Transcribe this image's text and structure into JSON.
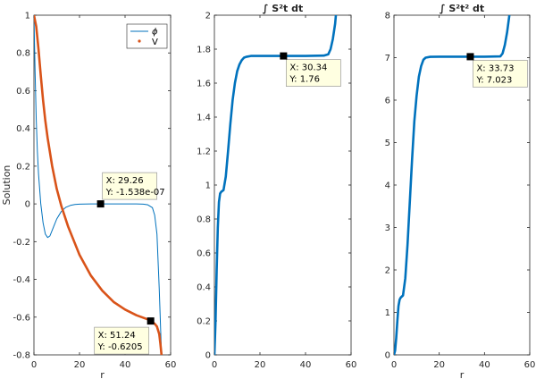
{
  "chart_data": [
    {
      "type": "line",
      "title": "",
      "xlabel": "r",
      "ylabel": "Solution",
      "xlim": [
        0,
        60
      ],
      "ylim": [
        -0.8,
        1
      ],
      "xticks": [
        0,
        20,
        40,
        60
      ],
      "yticks": [
        -0.8,
        -0.6,
        -0.4,
        -0.2,
        0,
        0.2,
        0.4,
        0.6,
        0.8,
        1
      ],
      "xtick_labels": [
        "0",
        "20",
        "40",
        "60"
      ],
      "ytick_labels": [
        "-0.8",
        "-0.6",
        "-0.4",
        "-0.2",
        "0",
        "0.2",
        "0.4",
        "0.6",
        "0.8",
        "1"
      ],
      "legend": {
        "placement": "top-right",
        "entries": [
          "ϕ",
          "V"
        ]
      },
      "series": [
        {
          "name": "ϕ",
          "color": "#0072BD",
          "width": "thin",
          "x": [
            0,
            0.5,
            1,
            1.5,
            2,
            3,
            4,
            5,
            6,
            7,
            8,
            9,
            10,
            12,
            14,
            16,
            18,
            20,
            25,
            30,
            35,
            40,
            45,
            48,
            50,
            52,
            53,
            54,
            55,
            56
          ],
          "y": [
            1.0,
            0.7,
            0.45,
            0.28,
            0.16,
            0.0,
            -0.1,
            -0.16,
            -0.178,
            -0.17,
            -0.14,
            -0.11,
            -0.08,
            -0.04,
            -0.018,
            -0.008,
            -0.003,
            -0.001,
            0.0,
            0.0,
            0.0,
            0.0,
            0.0,
            -0.001,
            -0.005,
            -0.02,
            -0.06,
            -0.16,
            -0.45,
            -0.8
          ]
        },
        {
          "name": "V",
          "color": "#D95319",
          "width": "thick",
          "x": [
            0,
            1,
            2,
            3,
            4,
            5,
            6,
            8,
            10,
            12,
            15,
            18,
            20,
            25,
            30,
            35,
            40,
            45,
            50,
            51.24,
            53,
            54,
            55,
            55.5,
            56
          ],
          "y": [
            1.0,
            0.94,
            0.82,
            0.68,
            0.55,
            0.44,
            0.35,
            0.2,
            0.08,
            -0.01,
            -0.12,
            -0.21,
            -0.27,
            -0.38,
            -0.46,
            -0.52,
            -0.56,
            -0.59,
            -0.612,
            -0.6205,
            -0.635,
            -0.65,
            -0.69,
            -0.74,
            -0.8
          ]
        }
      ],
      "datatips": [
        {
          "x": 29.26,
          "y": -1.538e-07,
          "lines": [
            "X: 29.26",
            "Y: -1.538e-07"
          ]
        },
        {
          "x": 51.24,
          "y": -0.6205,
          "lines": [
            "X: 51.24",
            "Y: -0.6205"
          ]
        }
      ]
    },
    {
      "type": "line",
      "title": "∫ S²t dt",
      "xlabel": "",
      "ylabel": "",
      "xlim": [
        0,
        60
      ],
      "ylim": [
        0,
        2
      ],
      "xticks": [
        0,
        20,
        40,
        60
      ],
      "yticks": [
        0,
        0.2,
        0.4,
        0.6,
        0.8,
        1,
        1.2,
        1.4,
        1.6,
        1.8,
        2
      ],
      "xtick_labels": [
        "0",
        "20",
        "40",
        "60"
      ],
      "ytick_labels": [
        "0",
        "0.2",
        "0.4",
        "0.6",
        "0.8",
        "1",
        "1.2",
        "1.4",
        "1.6",
        "1.8",
        "2"
      ],
      "series": [
        {
          "color": "#0072BD",
          "width": "thick",
          "x": [
            0,
            0.5,
            1,
            1.5,
            2,
            2.5,
            3,
            4,
            5,
            6,
            7,
            8,
            9,
            10,
            11,
            12,
            13,
            14,
            16,
            20,
            30,
            40,
            48,
            50,
            51,
            52,
            53,
            54
          ],
          "y": [
            0,
            0.2,
            0.5,
            0.75,
            0.9,
            0.95,
            0.96,
            0.97,
            1.05,
            1.2,
            1.36,
            1.5,
            1.6,
            1.67,
            1.71,
            1.735,
            1.75,
            1.755,
            1.76,
            1.76,
            1.76,
            1.76,
            1.762,
            1.77,
            1.8,
            1.86,
            1.95,
            2.1
          ]
        }
      ],
      "datatips": [
        {
          "x": 30.34,
          "y": 1.76,
          "lines": [
            "X: 30.34",
            "Y: 1.76"
          ]
        }
      ]
    },
    {
      "type": "line",
      "title": "∫ S²t² dt",
      "xlabel": "r",
      "ylabel": "",
      "xlim": [
        0,
        60
      ],
      "ylim": [
        0,
        8
      ],
      "xticks": [
        0,
        20,
        40,
        60
      ],
      "yticks": [
        0,
        1,
        2,
        3,
        4,
        5,
        6,
        7,
        8
      ],
      "xtick_labels": [
        "0",
        "20",
        "40",
        "60"
      ],
      "ytick_labels": [
        "0",
        "1",
        "2",
        "3",
        "4",
        "5",
        "6",
        "7",
        "8"
      ],
      "series": [
        {
          "color": "#0072BD",
          "width": "thick",
          "x": [
            0,
            0.5,
            1,
            1.5,
            2,
            2.5,
            3,
            4,
            5,
            6,
            7,
            8,
            9,
            10,
            11,
            12,
            13,
            14,
            16,
            20,
            30,
            40,
            47,
            48,
            49,
            50,
            51,
            52
          ],
          "y": [
            0,
            0.1,
            0.4,
            0.8,
            1.15,
            1.3,
            1.35,
            1.4,
            1.8,
            2.6,
            3.6,
            4.6,
            5.5,
            6.1,
            6.55,
            6.8,
            6.95,
            7.0,
            7.02,
            7.023,
            7.023,
            7.023,
            7.03,
            7.1,
            7.3,
            7.6,
            8.0,
            8.4
          ]
        }
      ],
      "datatips": [
        {
          "x": 33.73,
          "y": 7.023,
          "lines": [
            "X: 33.73",
            "Y: 7.023"
          ]
        }
      ]
    }
  ]
}
